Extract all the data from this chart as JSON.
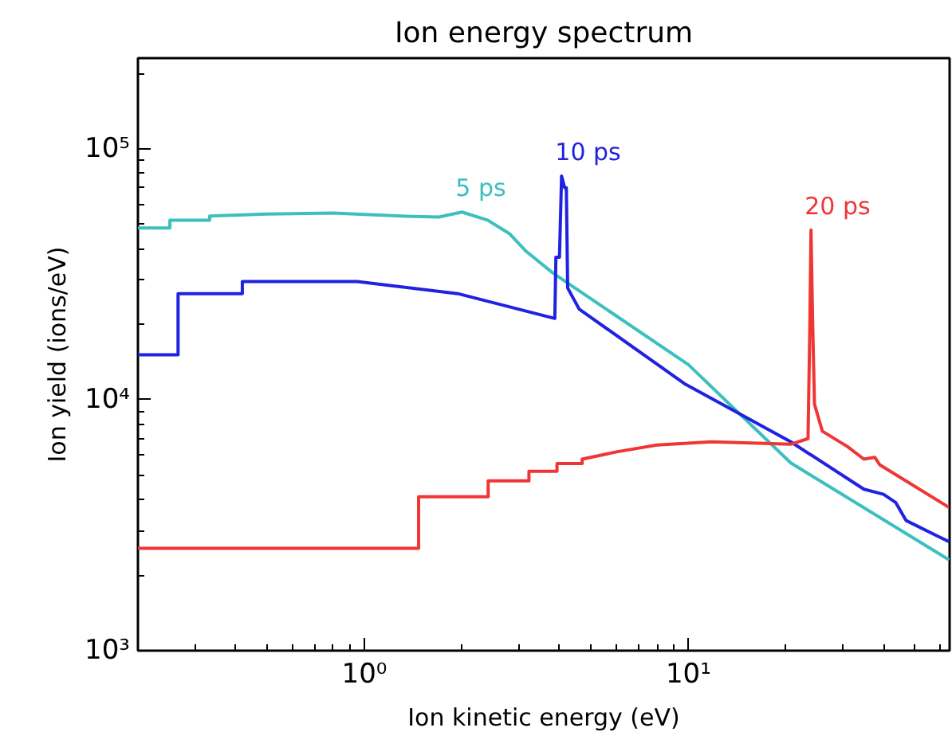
{
  "chart_data": {
    "type": "line",
    "title": "Ion energy spectrum",
    "xlabel": "Ion kinetic energy (eV)",
    "ylabel": "Ion yield (ions/eV)",
    "log": "xy",
    "grid": false,
    "marker": "none",
    "line_style": "solid",
    "xlim": [
      0.2,
      64
    ],
    "ylim": [
      1000,
      230000
    ],
    "xticks": [
      {
        "value": 1,
        "label": "10⁰"
      },
      {
        "value": 10,
        "label": "10¹"
      }
    ],
    "yticks": [
      {
        "value": 1000,
        "label": "10³"
      },
      {
        "value": 10000,
        "label": "10⁴"
      },
      {
        "value": 100000,
        "label": "10⁵"
      }
    ],
    "series": [
      {
        "name": "5 ps",
        "color": "#3cbfbf",
        "x": [
          0.2,
          0.251,
          0.251,
          0.333,
          0.333,
          0.5,
          0.8,
          1.3,
          1.7,
          2.0,
          2.4,
          2.8,
          3.16,
          3.82,
          10,
          20.7,
          63.8
        ],
        "values": [
          48400,
          48400,
          52000,
          52000,
          54000,
          55000,
          55500,
          54000,
          53500,
          56000,
          52000,
          46000,
          39000,
          32000,
          13800,
          5600,
          2300
        ]
      },
      {
        "name": "10 ps",
        "color": "#1f22e0",
        "x": [
          0.2,
          0.266,
          0.266,
          0.42,
          0.42,
          0.95,
          1.94,
          3.87,
          3.9,
          4.0,
          4.06,
          4.15,
          4.2,
          4.24,
          4.6,
          9.72,
          20.7,
          34.8,
          40,
          43.6,
          47,
          58.8,
          63.8
        ],
        "values": [
          15100,
          15100,
          26500,
          26500,
          29600,
          29600,
          26500,
          21100,
          37000,
          37000,
          78000,
          70000,
          70000,
          27900,
          23000,
          11600,
          6800,
          4400,
          4200,
          3900,
          3300,
          2860,
          2720
        ]
      },
      {
        "name": "20 ps",
        "color": "#f03535",
        "x": [
          0.2,
          1.47,
          1.47,
          2.41,
          2.41,
          3.22,
          3.22,
          3.93,
          3.93,
          4.7,
          4.7,
          6,
          8,
          11.8,
          20.7,
          23.4,
          23.7,
          23.9,
          24.2,
          24.5,
          25.9,
          31,
          34.8,
          37.6,
          39,
          63.6
        ],
        "values": [
          2560,
          2560,
          4110,
          4110,
          4750,
          4750,
          5190,
          5190,
          5570,
          5570,
          5800,
          6200,
          6600,
          6800,
          6650,
          7000,
          19400,
          47500,
          19400,
          9600,
          7500,
          6500,
          5800,
          5900,
          5500,
          3730
        ]
      }
    ]
  }
}
